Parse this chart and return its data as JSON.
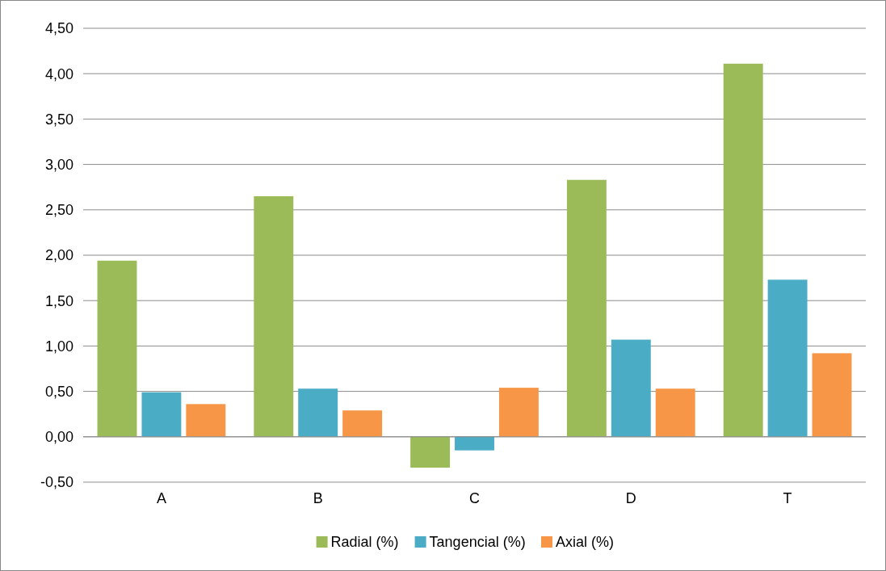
{
  "chart_data": {
    "type": "bar",
    "categories": [
      "A",
      "B",
      "C",
      "D",
      "T"
    ],
    "series": [
      {
        "name": "Radial (%)",
        "color": "#9bbb59",
        "values": [
          1.94,
          2.65,
          -0.34,
          2.83,
          4.11
        ]
      },
      {
        "name": "Tangencial (%)",
        "color": "#4bacc6",
        "values": [
          0.49,
          0.53,
          -0.15,
          1.07,
          1.73
        ]
      },
      {
        "name": "Axial (%)",
        "color": "#f79646",
        "values": [
          0.36,
          0.29,
          0.54,
          0.53,
          0.92
        ]
      }
    ],
    "ylim": [
      -0.5,
      4.5
    ],
    "yticks": [
      {
        "value": -0.5,
        "label": "-0,50"
      },
      {
        "value": 0,
        "label": "0,00"
      },
      {
        "value": 0.5,
        "label": "0,50"
      },
      {
        "value": 1,
        "label": "1,00"
      },
      {
        "value": 1.5,
        "label": "1,50"
      },
      {
        "value": 2,
        "label": "2,00"
      },
      {
        "value": 2.5,
        "label": "2,50"
      },
      {
        "value": 3,
        "label": "3,00"
      },
      {
        "value": 3.5,
        "label": "3,50"
      },
      {
        "value": 4,
        "label": "4,00"
      },
      {
        "value": 4.5,
        "label": "4,50"
      }
    ],
    "grid": "y",
    "legend": "bottom"
  }
}
